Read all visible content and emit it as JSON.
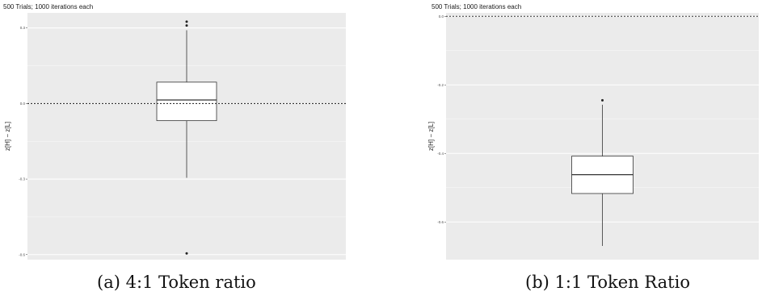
{
  "chart_data": [
    {
      "type": "box",
      "title": "500 Trials; 1000 iterations each",
      "xlabel": "",
      "ylabel": "z[H] − z[L]",
      "ylim": [
        -0.62,
        0.36
      ],
      "yticks": [
        -0.6,
        -0.3,
        0.0,
        0.3
      ],
      "ytick_labels": [
        "-0.6",
        "-0.3",
        "0.0",
        "0.3"
      ],
      "reference_line": {
        "y": 0.0,
        "style": "dotted"
      },
      "grid": true,
      "box": {
        "q1": -0.068,
        "median": 0.014,
        "q3": 0.085,
        "whisker_low": -0.295,
        "whisker_high": 0.291
      },
      "outliers": [
        0.325,
        0.31,
        -0.595
      ],
      "caption": "(a) 4:1 Token ratio"
    },
    {
      "type": "box",
      "title": "500 Trials; 1000 iterations each",
      "xlabel": "",
      "ylabel": "z[H] − z[L]",
      "ylim": [
        -0.71,
        0.01
      ],
      "yticks": [
        -0.6,
        -0.4,
        -0.2,
        0.0
      ],
      "ytick_labels": [
        "-0.6",
        "-0.4",
        "-0.2",
        "0.0"
      ],
      "reference_line": {
        "y": 0.0,
        "style": "dotted"
      },
      "grid": true,
      "box": {
        "q1": -0.517,
        "median": -0.462,
        "q3": -0.408,
        "whisker_low": -0.67,
        "whisker_high": -0.258
      },
      "outliers": [
        -0.245
      ],
      "caption": "(b) 1:1 Token Ratio"
    }
  ],
  "colors": {
    "panel_background": "#ebebeb",
    "grid_major": "#ffffff",
    "box_fill": "#ffffff",
    "box_stroke": "#333333",
    "reference_line": "#333333"
  }
}
